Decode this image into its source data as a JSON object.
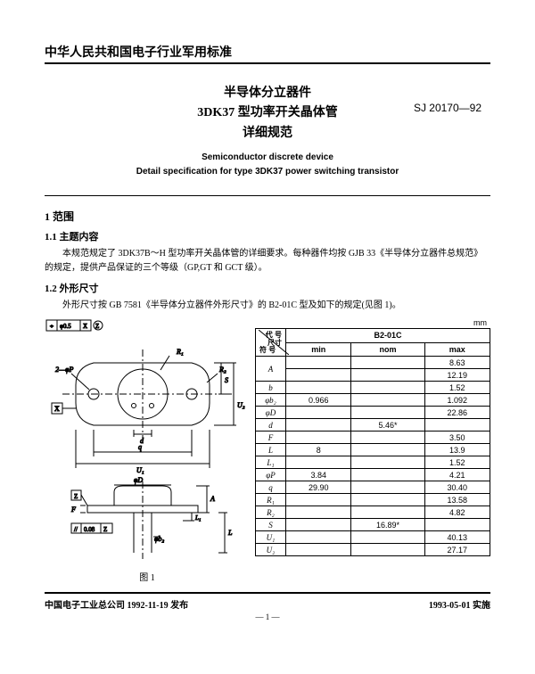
{
  "header": {
    "top": "中华人民共和国电子行业军用标准",
    "title_l1": "半导体分立器件",
    "title_l2": "3DK37 型功率开关晶体管",
    "title_l3": "详细规范",
    "code": "SJ 20170—92",
    "en_l1": "Semiconductor discrete device",
    "en_l2": "Detail specification for type 3DK37 power switching transistor"
  },
  "sections": {
    "s1": "1  范围",
    "s11": "1.1  主题内容",
    "p11": "本规范规定了 3DK37B～H 型功率开关晶体管的详细要求。每种器件均按 GJB 33《半导体分立器件总规范》的规定，提供产品保证的三个等级（GP,GT 和 GCT 级）。",
    "s12": "1.2  外形尺寸",
    "p12": "外形尺寸按 GB 7581《半导体分立器件外形尺寸》的 B2-01C 型及如下的规定(见图 1)。"
  },
  "table": {
    "unit": "mm",
    "header_code_label": "代 号",
    "header_dim_label": "尺寸",
    "header_sym": "符 号",
    "package": "B2-01C",
    "cols": [
      "min",
      "nom",
      "max"
    ],
    "rows": [
      {
        "sym": "A",
        "min": "",
        "nom": "",
        "max": "8.63",
        "row2_max": "12.19"
      },
      {
        "sym": "b",
        "min": "",
        "nom": "",
        "max": "1.52"
      },
      {
        "sym": "φb₂",
        "min": "0.966",
        "nom": "",
        "max": "1.092"
      },
      {
        "sym": "φD",
        "min": "",
        "nom": "",
        "max": "22.86"
      },
      {
        "sym": "d",
        "min": "",
        "nom": "5.46*",
        "max": ""
      },
      {
        "sym": "F",
        "min": "",
        "nom": "",
        "max": "3.50"
      },
      {
        "sym": "L",
        "min": "8",
        "nom": "",
        "max": "13.9"
      },
      {
        "sym": "L₁",
        "min": "",
        "nom": "",
        "max": "1.52"
      },
      {
        "sym": "φP",
        "min": "3.84",
        "nom": "",
        "max": "4.21"
      },
      {
        "sym": "q",
        "min": "29.90",
        "nom": "",
        "max": "30.40"
      },
      {
        "sym": "R₁",
        "min": "",
        "nom": "",
        "max": "13.58"
      },
      {
        "sym": "R₂",
        "min": "",
        "nom": "",
        "max": "4.82"
      },
      {
        "sym": "S",
        "min": "",
        "nom": "16.89*",
        "max": ""
      },
      {
        "sym": "U₁",
        "min": "",
        "nom": "",
        "max": "40.13"
      },
      {
        "sym": "U₂",
        "min": "",
        "nom": "",
        "max": "27.17"
      }
    ]
  },
  "figure": {
    "caption": "图 1"
  },
  "footer": {
    "left": "中国电子工业总公司 1992-11-19 发布",
    "right": "1993-05-01 实施",
    "pagenum": "— 1 —"
  },
  "colors": {
    "text": "#000000",
    "bg": "#ffffff"
  }
}
